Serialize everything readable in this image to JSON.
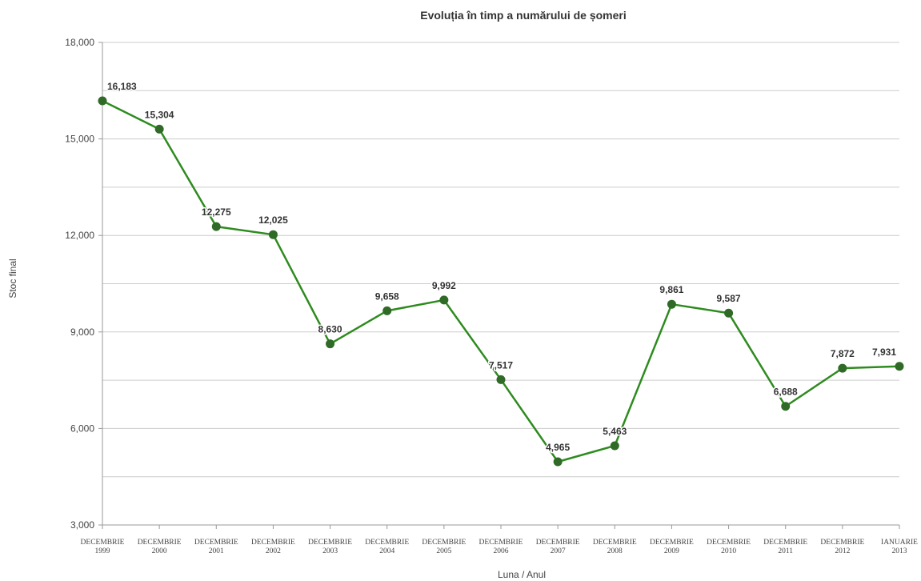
{
  "chart_data": {
    "type": "line",
    "title": "Evoluția în timp a numărului de șomeri",
    "xlabel": "Luna / Anul",
    "ylabel": "Stoc final",
    "ylim": [
      3000,
      18000
    ],
    "yticks": [
      "3,000",
      "6,000",
      "9,000",
      "12,000",
      "15,000",
      "18,000"
    ],
    "ytick_values": [
      3000,
      6000,
      9000,
      12000,
      15000,
      18000
    ],
    "grid": true,
    "categories": [
      [
        "DECEMBRIE",
        "1999"
      ],
      [
        "DECEMBRIE",
        "2000"
      ],
      [
        "DECEMBRIE",
        "2001"
      ],
      [
        "DECEMBRIE",
        "2002"
      ],
      [
        "DECEMBRIE",
        "2003"
      ],
      [
        "DECEMBRIE",
        "2004"
      ],
      [
        "DECEMBRIE",
        "2005"
      ],
      [
        "DECEMBRIE",
        "2006"
      ],
      [
        "DECEMBRIE",
        "2007"
      ],
      [
        "DECEMBRIE",
        "2008"
      ],
      [
        "DECEMBRIE",
        "2009"
      ],
      [
        "DECEMBRIE",
        "2010"
      ],
      [
        "DECEMBRIE",
        "2011"
      ],
      [
        "DECEMBRIE",
        "2012"
      ],
      [
        "IANUARIE",
        "2013"
      ]
    ],
    "values": [
      16183,
      15304,
      12275,
      12025,
      8630,
      9658,
      9992,
      7517,
      4965,
      5463,
      9861,
      9587,
      6688,
      7872,
      7931
    ],
    "data_labels": [
      "16,183",
      "15,304",
      "12,275",
      "12,025",
      "8,630",
      "9,658",
      "9,992",
      "7,517",
      "4,965",
      "5,463",
      "9,861",
      "9,587",
      "6,688",
      "7,872",
      "7,931"
    ],
    "colors": {
      "line": "#2e8b1f",
      "marker": "#2f6a27",
      "grid": "#cccccc",
      "axis": "#999999"
    }
  }
}
